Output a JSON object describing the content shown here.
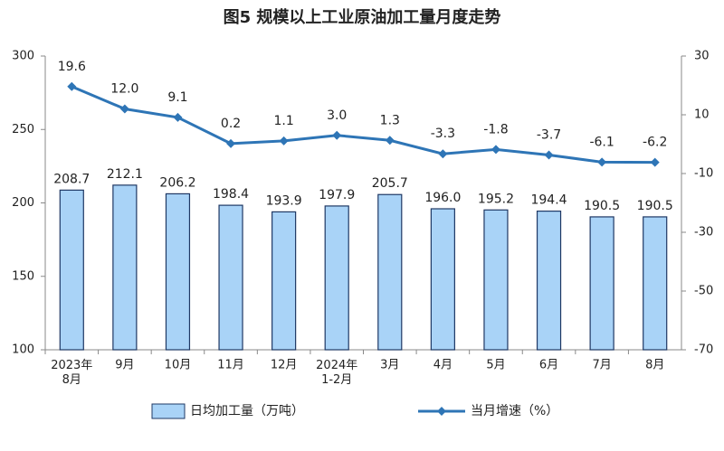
{
  "chart_data": {
    "type": "bar",
    "title": "图5  规模以上工业原油加工量月度走势",
    "categories": [
      "2023年\n8月",
      "9月",
      "10月",
      "11月",
      "12月",
      "2024年\n1-2月",
      "3月",
      "4月",
      "5月",
      "6月",
      "7月",
      "8月"
    ],
    "series": [
      {
        "name": "日均加工量（万吨）",
        "type": "bar",
        "color": "#a9d3f7",
        "stroke": "#1f3864",
        "values": [
          208.7,
          212.1,
          206.2,
          198.4,
          193.9,
          197.9,
          205.7,
          196.0,
          195.2,
          194.4,
          190.5,
          190.5
        ],
        "value_labels": [
          "208.7",
          "212.1",
          "206.2",
          "198.4",
          "193.9",
          "197.9",
          "205.7",
          "196.0",
          "195.2",
          "194.4",
          "190.5",
          "190.5"
        ]
      },
      {
        "name": "当月增速（%）",
        "type": "line",
        "axis": "y2",
        "color": "#2e75b6",
        "values": [
          19.6,
          12.0,
          9.1,
          0.2,
          1.1,
          3.0,
          1.3,
          -3.3,
          -1.8,
          -3.7,
          -6.1,
          -6.2
        ],
        "value_labels": [
          "19.6",
          "12.0",
          "9.1",
          "0.2",
          "1.1",
          "3.0",
          "1.3",
          "-3.3",
          "-1.8",
          "-3.7",
          "-6.1",
          "-6.2"
        ]
      }
    ],
    "ylim": [
      100,
      300
    ],
    "yticks": [
      100,
      150,
      200,
      250,
      300
    ],
    "y2lim": [
      -70,
      30
    ],
    "y2ticks": [
      -70,
      -50,
      -30,
      -10,
      10,
      30
    ],
    "legend": "bottom"
  }
}
